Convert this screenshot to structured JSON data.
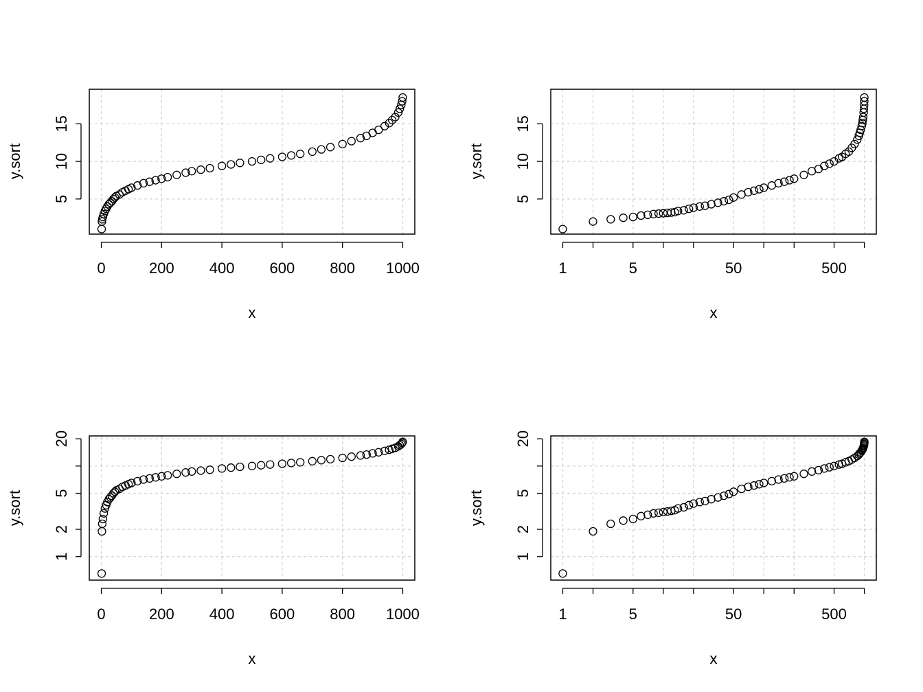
{
  "chart_data": [
    {
      "type": "scatter",
      "xlabel": "x",
      "ylabel": "y.sort",
      "x_scale": "linear",
      "y_scale": "linear",
      "xlim": [
        -40,
        1040
      ],
      "ylim": [
        0.33,
        19.6
      ],
      "xticks": [
        0,
        200,
        400,
        600,
        800,
        1000
      ],
      "xtick_labels": [
        "0",
        "200",
        "400",
        "600",
        "800",
        "1000"
      ],
      "yticks": [
        5,
        10,
        15
      ],
      "ytick_labels": [
        "5",
        "10",
        "15"
      ],
      "grid": true,
      "points": [
        [
          1,
          1.0
        ],
        [
          2,
          2.0
        ],
        [
          3,
          2.3
        ],
        [
          5,
          2.6
        ],
        [
          8,
          3.0
        ],
        [
          12,
          3.4
        ],
        [
          16,
          3.7
        ],
        [
          20,
          4.0
        ],
        [
          25,
          4.3
        ],
        [
          30,
          4.5
        ],
        [
          35,
          4.7
        ],
        [
          40,
          5.0
        ],
        [
          45,
          5.2
        ],
        [
          50,
          5.4
        ],
        [
          60,
          5.6
        ],
        [
          70,
          5.9
        ],
        [
          80,
          6.1
        ],
        [
          90,
          6.3
        ],
        [
          100,
          6.5
        ],
        [
          120,
          6.8
        ],
        [
          140,
          7.1
        ],
        [
          160,
          7.3
        ],
        [
          180,
          7.5
        ],
        [
          200,
          7.7
        ],
        [
          220,
          7.9
        ],
        [
          250,
          8.2
        ],
        [
          280,
          8.5
        ],
        [
          300,
          8.7
        ],
        [
          330,
          8.9
        ],
        [
          360,
          9.1
        ],
        [
          400,
          9.4
        ],
        [
          430,
          9.6
        ],
        [
          460,
          9.8
        ],
        [
          500,
          10.0
        ],
        [
          530,
          10.2
        ],
        [
          560,
          10.4
        ],
        [
          600,
          10.6
        ],
        [
          630,
          10.8
        ],
        [
          660,
          11.0
        ],
        [
          700,
          11.3
        ],
        [
          730,
          11.6
        ],
        [
          760,
          11.9
        ],
        [
          800,
          12.3
        ],
        [
          830,
          12.7
        ],
        [
          860,
          13.1
        ],
        [
          880,
          13.4
        ],
        [
          900,
          13.8
        ],
        [
          920,
          14.2
        ],
        [
          940,
          14.7
        ],
        [
          955,
          15.1
        ],
        [
          965,
          15.5
        ],
        [
          975,
          15.9
        ],
        [
          985,
          16.5
        ],
        [
          990,
          17.0
        ],
        [
          995,
          17.5
        ],
        [
          998,
          18.0
        ],
        [
          1000,
          18.5
        ]
      ]
    },
    {
      "type": "scatter",
      "xlabel": "x",
      "ylabel": "y.sort",
      "x_scale": "log",
      "y_scale": "linear",
      "xlim": [
        0.76,
        1315
      ],
      "ylim": [
        0.33,
        19.6
      ],
      "xticks": [
        1,
        2,
        5,
        10,
        20,
        50,
        100,
        200,
        500,
        1000
      ],
      "xtick_labels": [
        "1",
        "",
        "5",
        "",
        "",
        "50",
        "",
        "",
        "500",
        ""
      ],
      "yticks": [
        5,
        10,
        15
      ],
      "ytick_labels": [
        "5",
        "10",
        "15"
      ],
      "grid": true,
      "points": [
        [
          1,
          1.0
        ],
        [
          2,
          2.0
        ],
        [
          3,
          2.3
        ],
        [
          4,
          2.5
        ],
        [
          5,
          2.6
        ],
        [
          6,
          2.8
        ],
        [
          7,
          2.9
        ],
        [
          8,
          3.0
        ],
        [
          9,
          3.05
        ],
        [
          10,
          3.1
        ],
        [
          11,
          3.15
        ],
        [
          12,
          3.2
        ],
        [
          13,
          3.25
        ],
        [
          14,
          3.4
        ],
        [
          16,
          3.5
        ],
        [
          18,
          3.7
        ],
        [
          20,
          3.85
        ],
        [
          23,
          4.0
        ],
        [
          26,
          4.1
        ],
        [
          30,
          4.3
        ],
        [
          35,
          4.5
        ],
        [
          40,
          4.7
        ],
        [
          45,
          4.9
        ],
        [
          50,
          5.2
        ],
        [
          60,
          5.6
        ],
        [
          70,
          5.9
        ],
        [
          80,
          6.1
        ],
        [
          90,
          6.3
        ],
        [
          100,
          6.5
        ],
        [
          120,
          6.8
        ],
        [
          140,
          7.1
        ],
        [
          160,
          7.3
        ],
        [
          180,
          7.5
        ],
        [
          200,
          7.7
        ],
        [
          250,
          8.2
        ],
        [
          300,
          8.7
        ],
        [
          350,
          9.0
        ],
        [
          400,
          9.4
        ],
        [
          450,
          9.7
        ],
        [
          500,
          10.0
        ],
        [
          560,
          10.4
        ],
        [
          600,
          10.6
        ],
        [
          650,
          11.0
        ],
        [
          700,
          11.3
        ],
        [
          750,
          11.8
        ],
        [
          800,
          12.3
        ],
        [
          850,
          12.9
        ],
        [
          880,
          13.4
        ],
        [
          900,
          13.8
        ],
        [
          920,
          14.2
        ],
        [
          940,
          14.7
        ],
        [
          955,
          15.1
        ],
        [
          965,
          15.5
        ],
        [
          975,
          15.9
        ],
        [
          985,
          16.5
        ],
        [
          990,
          17.0
        ],
        [
          995,
          17.5
        ],
        [
          998,
          18.0
        ],
        [
          1000,
          18.5
        ]
      ]
    },
    {
      "type": "scatter",
      "xlabel": "x",
      "ylabel": "y.sort",
      "x_scale": "linear",
      "y_scale": "log",
      "xlim": [
        -40,
        1040
      ],
      "ylim": [
        0.55,
        21.5
      ],
      "xticks": [
        0,
        200,
        400,
        600,
        800,
        1000
      ],
      "xtick_labels": [
        "0",
        "200",
        "400",
        "600",
        "800",
        "1000"
      ],
      "yticks": [
        1,
        2,
        5,
        10,
        20
      ],
      "ytick_labels": [
        "1",
        "2",
        "5",
        "",
        "20"
      ],
      "grid": true,
      "points": [
        [
          1,
          0.65
        ],
        [
          2,
          1.9
        ],
        [
          3,
          2.3
        ],
        [
          5,
          2.6
        ],
        [
          8,
          3.0
        ],
        [
          12,
          3.4
        ],
        [
          16,
          3.7
        ],
        [
          20,
          4.0
        ],
        [
          25,
          4.3
        ],
        [
          30,
          4.5
        ],
        [
          35,
          4.7
        ],
        [
          40,
          5.0
        ],
        [
          45,
          5.2
        ],
        [
          50,
          5.4
        ],
        [
          60,
          5.6
        ],
        [
          70,
          5.9
        ],
        [
          80,
          6.1
        ],
        [
          90,
          6.3
        ],
        [
          100,
          6.5
        ],
        [
          120,
          6.8
        ],
        [
          140,
          7.1
        ],
        [
          160,
          7.3
        ],
        [
          180,
          7.5
        ],
        [
          200,
          7.7
        ],
        [
          220,
          7.9
        ],
        [
          250,
          8.2
        ],
        [
          280,
          8.5
        ],
        [
          300,
          8.7
        ],
        [
          330,
          8.9
        ],
        [
          360,
          9.1
        ],
        [
          400,
          9.4
        ],
        [
          430,
          9.6
        ],
        [
          460,
          9.8
        ],
        [
          500,
          10.0
        ],
        [
          530,
          10.2
        ],
        [
          560,
          10.4
        ],
        [
          600,
          10.6
        ],
        [
          630,
          10.8
        ],
        [
          660,
          11.0
        ],
        [
          700,
          11.3
        ],
        [
          730,
          11.6
        ],
        [
          760,
          11.9
        ],
        [
          800,
          12.3
        ],
        [
          830,
          12.7
        ],
        [
          860,
          13.1
        ],
        [
          880,
          13.4
        ],
        [
          900,
          13.8
        ],
        [
          920,
          14.2
        ],
        [
          940,
          14.7
        ],
        [
          955,
          15.1
        ],
        [
          965,
          15.5
        ],
        [
          975,
          15.9
        ],
        [
          985,
          16.5
        ],
        [
          990,
          17.0
        ],
        [
          995,
          17.5
        ],
        [
          998,
          18.0
        ],
        [
          1000,
          18.5
        ]
      ]
    },
    {
      "type": "scatter",
      "xlabel": "x",
      "ylabel": "y.sort",
      "x_scale": "log",
      "y_scale": "log",
      "xlim": [
        0.76,
        1315
      ],
      "ylim": [
        0.55,
        21.5
      ],
      "xticks": [
        1,
        2,
        5,
        10,
        20,
        50,
        100,
        200,
        500,
        1000
      ],
      "xtick_labels": [
        "1",
        "",
        "5",
        "",
        "",
        "50",
        "",
        "",
        "500",
        ""
      ],
      "yticks": [
        1,
        2,
        5,
        10,
        20
      ],
      "ytick_labels": [
        "1",
        "2",
        "5",
        "",
        "20"
      ],
      "grid": true,
      "points": [
        [
          1,
          0.65
        ],
        [
          2,
          1.9
        ],
        [
          3,
          2.3
        ],
        [
          4,
          2.5
        ],
        [
          5,
          2.6
        ],
        [
          6,
          2.8
        ],
        [
          7,
          2.9
        ],
        [
          8,
          3.0
        ],
        [
          9,
          3.05
        ],
        [
          10,
          3.1
        ],
        [
          11,
          3.15
        ],
        [
          12,
          3.2
        ],
        [
          13,
          3.25
        ],
        [
          14,
          3.4
        ],
        [
          16,
          3.5
        ],
        [
          18,
          3.7
        ],
        [
          20,
          3.85
        ],
        [
          23,
          4.0
        ],
        [
          26,
          4.1
        ],
        [
          30,
          4.3
        ],
        [
          35,
          4.5
        ],
        [
          40,
          4.7
        ],
        [
          45,
          4.9
        ],
        [
          50,
          5.2
        ],
        [
          60,
          5.6
        ],
        [
          70,
          5.9
        ],
        [
          80,
          6.1
        ],
        [
          90,
          6.3
        ],
        [
          100,
          6.5
        ],
        [
          120,
          6.8
        ],
        [
          140,
          7.1
        ],
        [
          160,
          7.3
        ],
        [
          180,
          7.5
        ],
        [
          200,
          7.7
        ],
        [
          250,
          8.2
        ],
        [
          300,
          8.7
        ],
        [
          350,
          9.0
        ],
        [
          400,
          9.4
        ],
        [
          450,
          9.7
        ],
        [
          500,
          10.0
        ],
        [
          560,
          10.4
        ],
        [
          600,
          10.6
        ],
        [
          650,
          11.0
        ],
        [
          700,
          11.3
        ],
        [
          750,
          11.8
        ],
        [
          800,
          12.3
        ],
        [
          850,
          12.9
        ],
        [
          880,
          13.4
        ],
        [
          900,
          13.8
        ],
        [
          920,
          14.2
        ],
        [
          940,
          14.7
        ],
        [
          955,
          15.1
        ],
        [
          965,
          15.5
        ],
        [
          975,
          15.9
        ],
        [
          985,
          16.5
        ],
        [
          990,
          17.0
        ],
        [
          995,
          17.5
        ],
        [
          998,
          18.0
        ],
        [
          1000,
          18.5
        ]
      ]
    }
  ]
}
